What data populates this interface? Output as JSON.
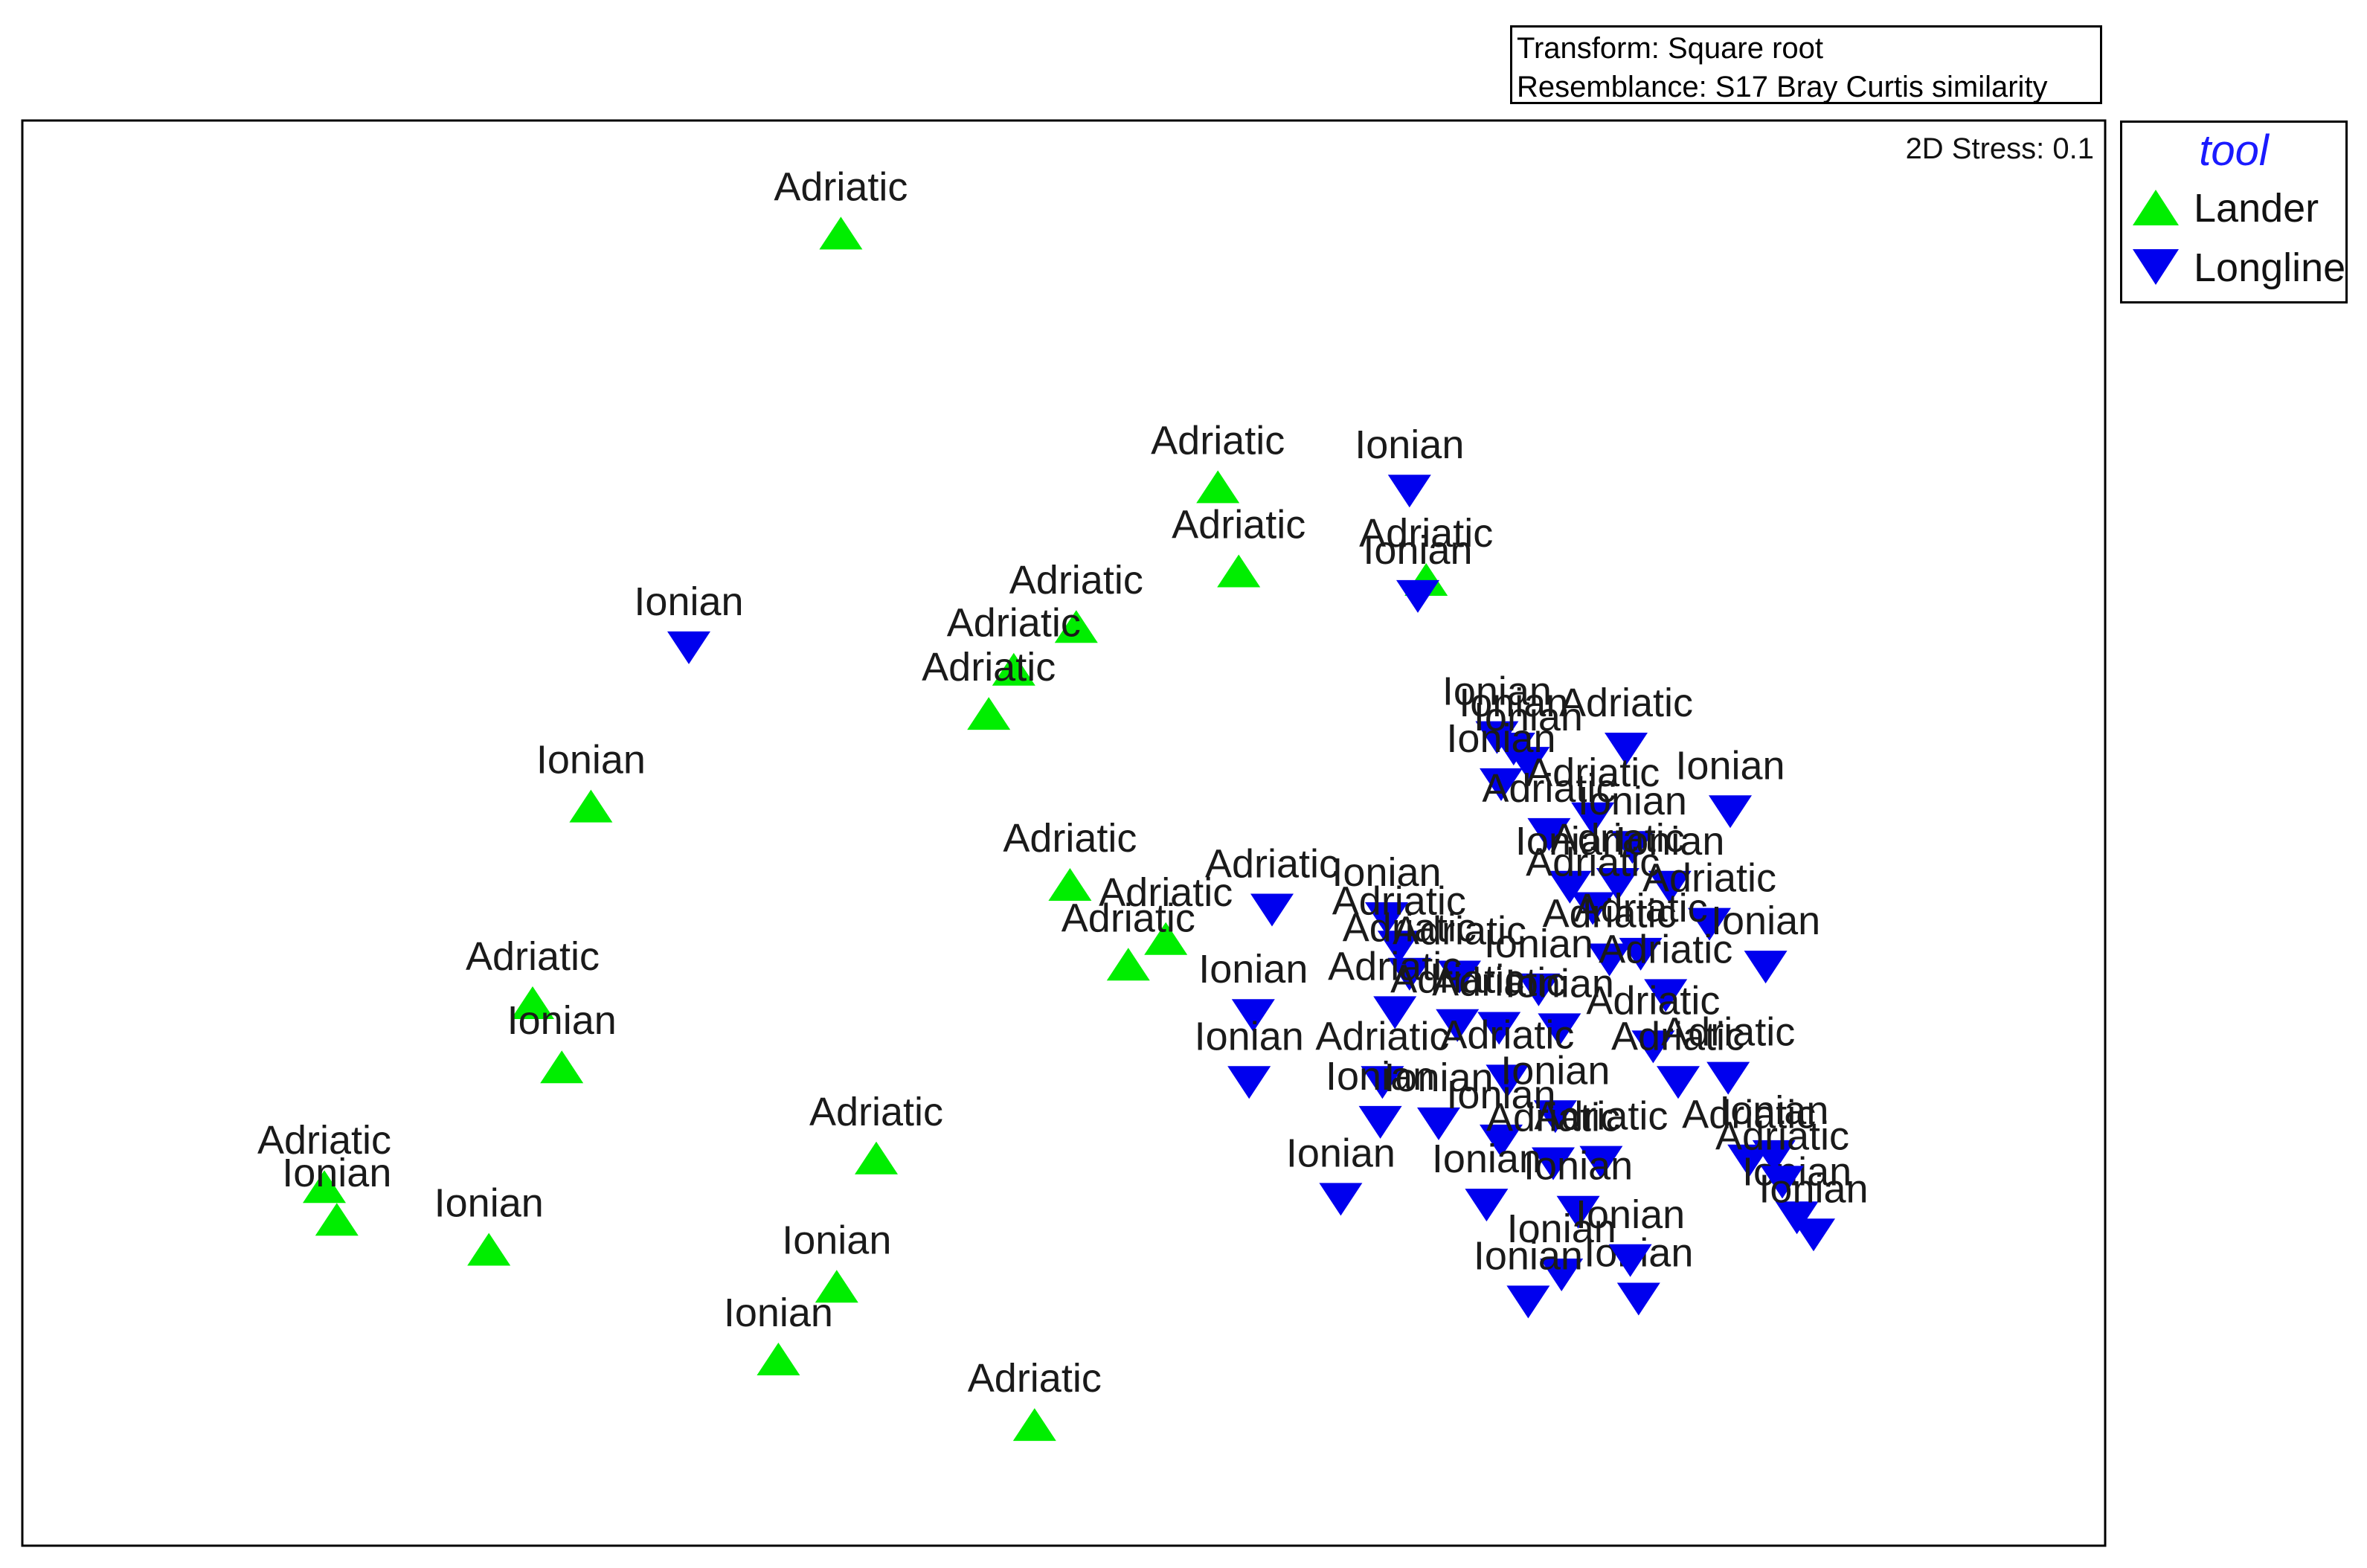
{
  "transform_text": "Transform: Square root",
  "resemblance_text": "Resemblance: S17 Bray Curtis similarity",
  "stress_text": "2D Stress: 0.1",
  "legend": {
    "title": "tool",
    "items": [
      {
        "label": "Lander",
        "color": "#00ee00",
        "shape": "triangle-up"
      },
      {
        "label": "Longline",
        "color": "#0000ee",
        "shape": "triangle-down"
      }
    ]
  },
  "chart_data": {
    "type": "scatter",
    "title": "",
    "xlabel": "",
    "ylabel": "",
    "xlim": [
      0,
      100
    ],
    "ylim": [
      0,
      100
    ],
    "grid": false,
    "legend_position": "outside-top-right",
    "series": [
      {
        "name": "Lander",
        "color": "#00ee00",
        "marker": "triangle-up",
        "points": [
          {
            "x": 39.3,
            "y": 92.1,
            "label": "Adriatic"
          },
          {
            "x": 57.4,
            "y": 74.3,
            "label": "Adriatic"
          },
          {
            "x": 58.4,
            "y": 68.4,
            "label": "Adriatic"
          },
          {
            "x": 50.6,
            "y": 64.5,
            "label": "Adriatic"
          },
          {
            "x": 47.6,
            "y": 61.5,
            "label": "Adriatic"
          },
          {
            "x": 46.4,
            "y": 58.4,
            "label": "Adriatic"
          },
          {
            "x": 67.4,
            "y": 67.8,
            "label": "Adriatic"
          },
          {
            "x": 27.3,
            "y": 51.9,
            "label": "Ionian"
          },
          {
            "x": 50.3,
            "y": 46.4,
            "label": "Adriatic"
          },
          {
            "x": 54.9,
            "y": 42.6,
            "label": "Adriatic"
          },
          {
            "x": 53.1,
            "y": 40.8,
            "label": "Adriatic"
          },
          {
            "x": 24.5,
            "y": 38.1,
            "label": "Adriatic"
          },
          {
            "x": 25.9,
            "y": 33.6,
            "label": "Ionian"
          },
          {
            "x": 41.0,
            "y": 27.2,
            "label": "Adriatic"
          },
          {
            "x": 14.5,
            "y": 25.2,
            "label": "Adriatic"
          },
          {
            "x": 15.1,
            "y": 22.9,
            "label": "Ionian"
          },
          {
            "x": 22.4,
            "y": 20.8,
            "label": "Ionian"
          },
          {
            "x": 39.1,
            "y": 18.2,
            "label": "Ionian"
          },
          {
            "x": 36.3,
            "y": 13.1,
            "label": "Ionian"
          },
          {
            "x": 48.6,
            "y": 8.5,
            "label": "Adriatic"
          }
        ]
      },
      {
        "name": "Longline",
        "color": "#0000ee",
        "marker": "triangle-down",
        "points": [
          {
            "x": 66.6,
            "y": 74.0,
            "label": "Ionian"
          },
          {
            "x": 67.0,
            "y": 66.6,
            "label": "Ionian"
          },
          {
            "x": 32.0,
            "y": 63.0,
            "label": "Ionian"
          },
          {
            "x": 70.8,
            "y": 56.7,
            "label": "Ionian"
          },
          {
            "x": 71.6,
            "y": 55.9,
            "label": "Ionian"
          },
          {
            "x": 72.3,
            "y": 54.9,
            "label": "Ionian"
          },
          {
            "x": 71.0,
            "y": 53.4,
            "label": "Ionian"
          },
          {
            "x": 77.0,
            "y": 55.9,
            "label": "Adriatic"
          },
          {
            "x": 82.0,
            "y": 51.5,
            "label": "Ionian"
          },
          {
            "x": 75.4,
            "y": 51.0,
            "label": "Adriatic"
          },
          {
            "x": 77.3,
            "y": 49.0,
            "label": "Ionian"
          },
          {
            "x": 73.3,
            "y": 49.9,
            "label": "Adriatic"
          },
          {
            "x": 74.3,
            "y": 46.2,
            "label": "Ionian"
          },
          {
            "x": 76.6,
            "y": 46.4,
            "label": "Adriatic"
          },
          {
            "x": 79.1,
            "y": 46.2,
            "label": "Ionian"
          },
          {
            "x": 75.4,
            "y": 44.7,
            "label": "Adriatic"
          },
          {
            "x": 81.0,
            "y": 43.6,
            "label": "Adriatic"
          },
          {
            "x": 83.7,
            "y": 40.6,
            "label": "Ionian"
          },
          {
            "x": 77.7,
            "y": 41.5,
            "label": "Adriatic"
          },
          {
            "x": 76.2,
            "y": 41.1,
            "label": "Adriatic"
          },
          {
            "x": 60.0,
            "y": 44.6,
            "label": "Adriatic"
          },
          {
            "x": 65.5,
            "y": 44.0,
            "label": "Ionian"
          },
          {
            "x": 66.1,
            "y": 42.0,
            "label": "Adriatic"
          },
          {
            "x": 66.6,
            "y": 40.1,
            "label": "Adriatic"
          },
          {
            "x": 69.0,
            "y": 39.9,
            "label": "Adriatic"
          },
          {
            "x": 72.8,
            "y": 39.0,
            "label": "Ionian"
          },
          {
            "x": 78.9,
            "y": 38.6,
            "label": "Adriatic"
          },
          {
            "x": 59.1,
            "y": 37.2,
            "label": "Ionian"
          },
          {
            "x": 65.9,
            "y": 37.4,
            "label": "Adriatic"
          },
          {
            "x": 68.9,
            "y": 36.5,
            "label": "Adriatic"
          },
          {
            "x": 70.9,
            "y": 36.3,
            "label": "Adriatic"
          },
          {
            "x": 73.8,
            "y": 36.2,
            "label": "Ionian"
          },
          {
            "x": 78.3,
            "y": 35.0,
            "label": "Adriatic"
          },
          {
            "x": 58.9,
            "y": 32.5,
            "label": "Ionian"
          },
          {
            "x": 65.3,
            "y": 32.5,
            "label": "Adriatic"
          },
          {
            "x": 71.3,
            "y": 32.6,
            "label": "Adriatic"
          },
          {
            "x": 79.5,
            "y": 32.5,
            "label": "Adriatic"
          },
          {
            "x": 81.9,
            "y": 32.8,
            "label": "Adriatic"
          },
          {
            "x": 65.2,
            "y": 29.7,
            "label": "Ionian"
          },
          {
            "x": 68.0,
            "y": 29.6,
            "label": "Ionian"
          },
          {
            "x": 73.6,
            "y": 30.1,
            "label": "Ionian"
          },
          {
            "x": 71.0,
            "y": 28.4,
            "label": "Ionian"
          },
          {
            "x": 82.9,
            "y": 27.0,
            "label": "Adriatic"
          },
          {
            "x": 84.1,
            "y": 27.3,
            "label": "Ionian"
          },
          {
            "x": 73.5,
            "y": 26.8,
            "label": "Adriatic"
          },
          {
            "x": 75.8,
            "y": 26.9,
            "label": "Adriatic"
          },
          {
            "x": 63.3,
            "y": 24.3,
            "label": "Ionian"
          },
          {
            "x": 70.3,
            "y": 23.9,
            "label": "Ionian"
          },
          {
            "x": 74.7,
            "y": 23.4,
            "label": "Ionian"
          },
          {
            "x": 85.2,
            "y": 23.0,
            "label": "Ionian"
          },
          {
            "x": 84.5,
            "y": 25.5,
            "label": "Adriatic"
          },
          {
            "x": 86.0,
            "y": 21.8,
            "label": "Ionian"
          },
          {
            "x": 73.9,
            "y": 19.0,
            "label": "Ionian"
          },
          {
            "x": 72.3,
            "y": 17.1,
            "label": "Ionian"
          },
          {
            "x": 77.6,
            "y": 17.3,
            "label": "Ionian"
          },
          {
            "x": 77.2,
            "y": 20.0,
            "label": "Ionian"
          }
        ]
      }
    ]
  }
}
